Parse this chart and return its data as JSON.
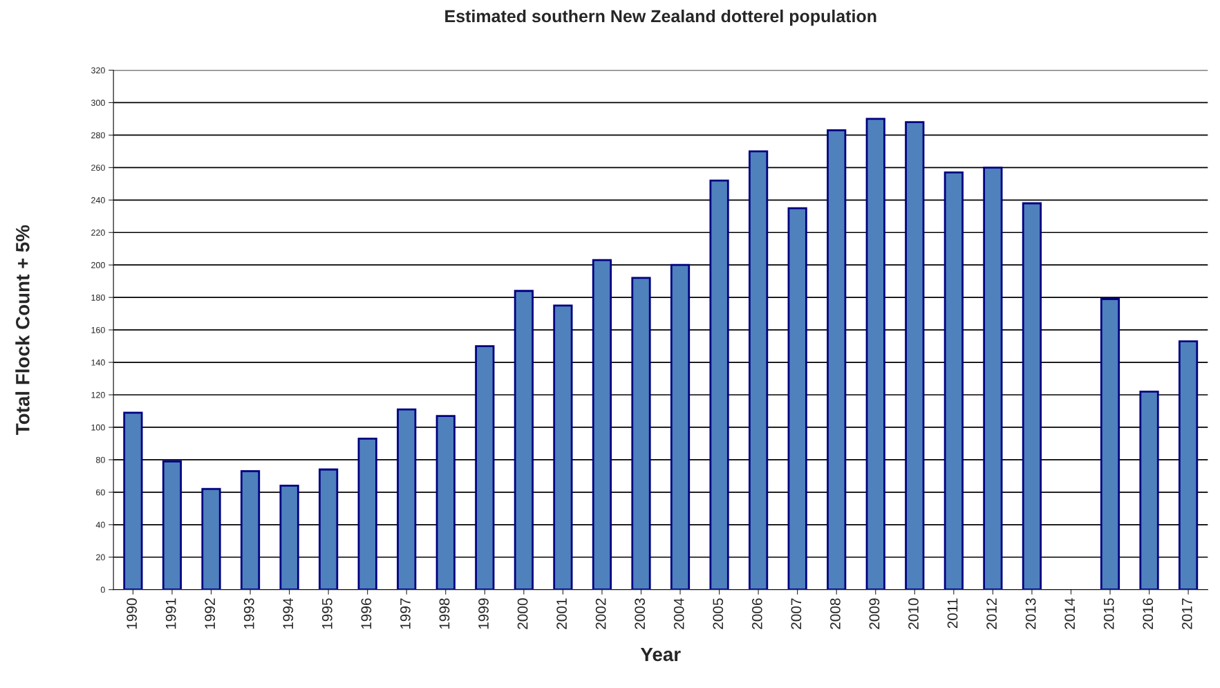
{
  "chart_data": {
    "type": "bar",
    "title": "Estimated southern New Zealand dotterel population",
    "xlabel": "Year",
    "ylabel": "Total Flock Count + 5%",
    "categories": [
      "1990",
      "1991",
      "1992",
      "1993",
      "1994",
      "1995",
      "1996",
      "1997",
      "1998",
      "1999",
      "2000",
      "2001",
      "2002",
      "2003",
      "2004",
      "2005",
      "2006",
      "2007",
      "2008",
      "2009",
      "2010",
      "2011",
      "2012",
      "2013",
      "2014",
      "2015",
      "2016",
      "2017"
    ],
    "values": [
      109,
      79,
      62,
      73,
      64,
      74,
      93,
      111,
      107,
      150,
      184,
      175,
      203,
      192,
      200,
      252,
      270,
      235,
      283,
      290,
      288,
      257,
      260,
      238,
      null,
      179,
      122,
      153
    ],
    "color": "#4f81bd",
    "ylim": [
      0,
      320
    ],
    "yticks": [
      0,
      20,
      40,
      60,
      80,
      100,
      120,
      140,
      160,
      180,
      200,
      220,
      240,
      260,
      280,
      300,
      320
    ],
    "grid": "y",
    "legend": false
  }
}
